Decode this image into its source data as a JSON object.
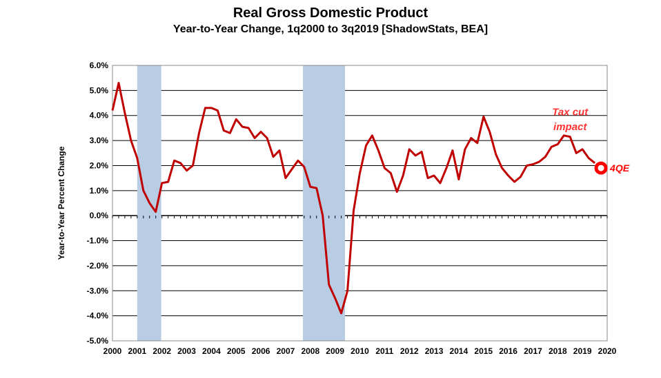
{
  "chart_data": {
    "type": "line",
    "title": "Real Gross Domestic Product",
    "subtitle": "Year-to-Year Change, 1q2000 to 3q2019 [ShadowStats, BEA]",
    "ylabel": "Year-to-Year Percent Change",
    "xlabel": "",
    "xlim": [
      2000,
      2020
    ],
    "ylim": [
      -5,
      6
    ],
    "grid": true,
    "x_ticks": [
      "2000",
      "2001",
      "2002",
      "2003",
      "2004",
      "2005",
      "2006",
      "2007",
      "2008",
      "2009",
      "2010",
      "2011",
      "2012",
      "2013",
      "2014",
      "2015",
      "2016",
      "2017",
      "2018",
      "2019",
      "2020"
    ],
    "y_ticks": [
      "6.0%",
      "5.0%",
      "4.0%",
      "3.0%",
      "2.0%",
      "1.0%",
      "0.0%",
      "-1.0%",
      "-2.0%",
      "-3.0%",
      "-4.0%",
      "-5.0%"
    ],
    "y_tick_values": [
      6,
      5,
      4,
      3,
      2,
      1,
      0,
      -1,
      -2,
      -3,
      -4,
      -5
    ],
    "recessions": [
      [
        2001.0,
        2001.97
      ],
      [
        2007.7,
        2009.4
      ]
    ],
    "series": [
      {
        "color": "#c00000",
        "start": 2000.0,
        "step": 0.25,
        "values": [
          4.2,
          5.3,
          4.1,
          3.0,
          2.3,
          1.0,
          0.5,
          0.15,
          1.3,
          1.35,
          2.2,
          2.1,
          1.8,
          2.0,
          3.3,
          4.3,
          4.3,
          4.2,
          3.4,
          3.3,
          3.85,
          3.55,
          3.5,
          3.1,
          3.35,
          3.1,
          2.35,
          2.6,
          1.5,
          1.85,
          2.2,
          1.95,
          1.15,
          1.1,
          0.0,
          -2.75,
          -3.3,
          -3.9,
          -3.0,
          0.2,
          1.7,
          2.8,
          3.2,
          2.6,
          1.9,
          1.7,
          0.95,
          1.6,
          2.65,
          2.4,
          2.55,
          1.5,
          1.6,
          1.3,
          1.9,
          2.6,
          1.45,
          2.65,
          3.1,
          2.9,
          3.95,
          3.35,
          2.45,
          1.9,
          1.6,
          1.35,
          1.55,
          2.0,
          2.05,
          2.15,
          2.35,
          2.75,
          2.85,
          3.2,
          3.15,
          2.5,
          2.65,
          2.3,
          2.1
        ]
      }
    ],
    "estimate_marker": {
      "x": 2019.75,
      "y": 1.9,
      "label": "4QE",
      "color": "#ff0000"
    },
    "annotations": [
      {
        "text": "Tax cut",
        "x": 2018.5,
        "y": 4.15
      },
      {
        "text": "impact",
        "x": 2018.5,
        "y": 3.55
      }
    ]
  }
}
